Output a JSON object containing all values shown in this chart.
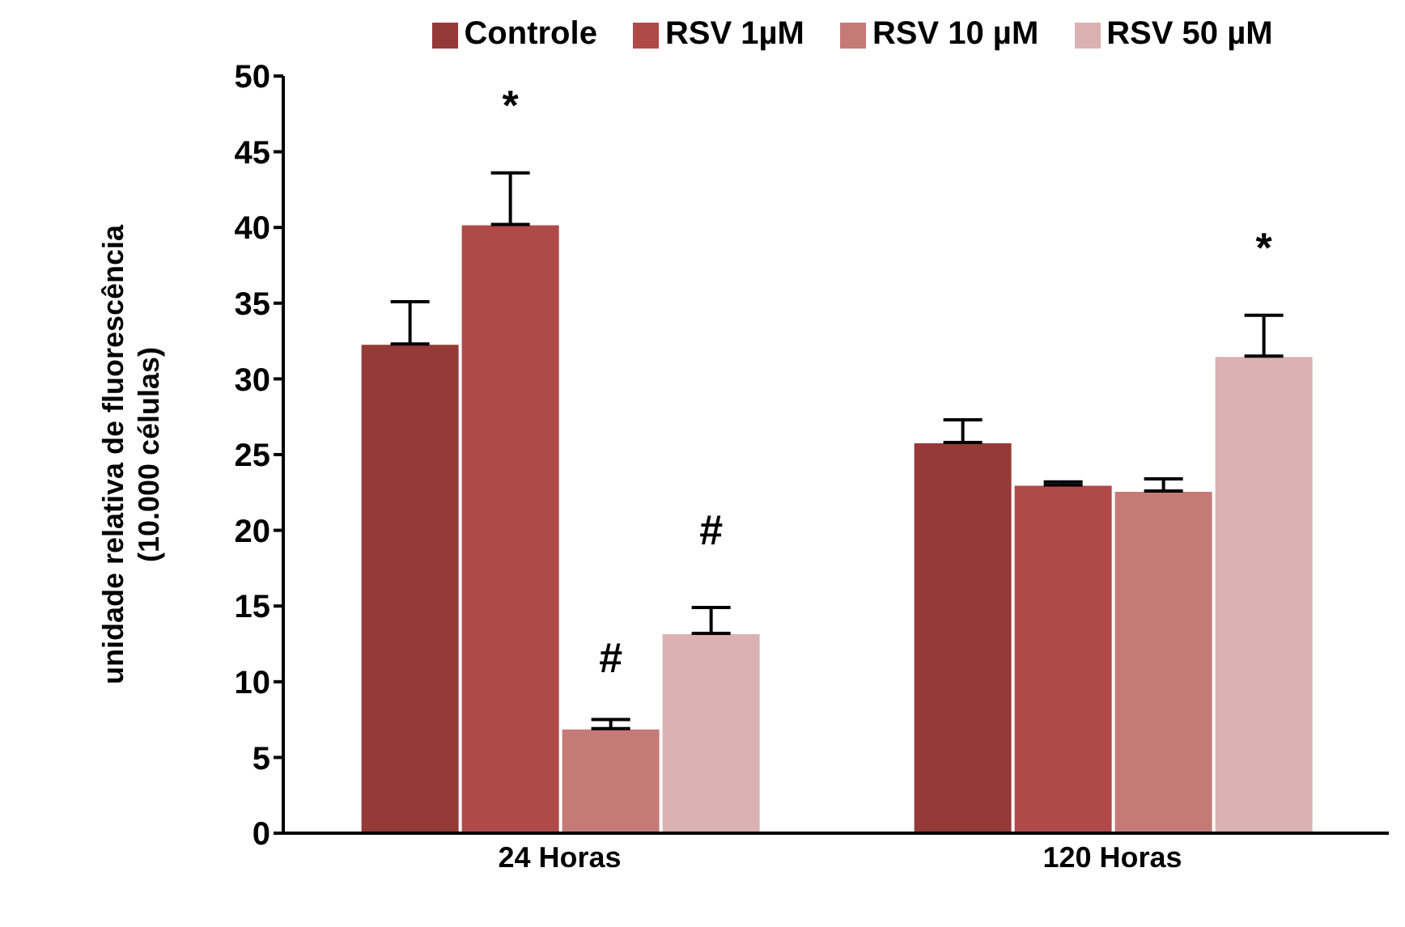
{
  "chart_data": {
    "type": "bar",
    "ylabel": "unidade relativa de fluorescência\n(10.000 células)",
    "categories": [
      "24 Horas",
      "120 Horas"
    ],
    "series": [
      {
        "name": "Controle",
        "color": "#943a37",
        "values": [
          32.3,
          25.8
        ],
        "errors": [
          [
            32.3,
            35.1
          ],
          [
            25.8,
            27.3
          ]
        ]
      },
      {
        "name": "RSV 1µM",
        "color": "#b04a48",
        "values": [
          40.2,
          23.0
        ],
        "errors": [
          [
            40.2,
            43.6
          ],
          [
            23.0,
            23.2
          ]
        ]
      },
      {
        "name": "RSV 10 µM",
        "color": "#c67a78",
        "values": [
          6.9,
          22.6
        ],
        "errors": [
          [
            6.9,
            7.5
          ],
          [
            22.6,
            23.4
          ]
        ]
      },
      {
        "name": "RSV 50 µM",
        "color": "#dbb1b1",
        "values": [
          13.2,
          31.5
        ],
        "errors": [
          [
            13.2,
            14.9
          ],
          [
            31.5,
            34.2
          ]
        ]
      }
    ],
    "ylim": [
      0,
      50
    ],
    "yticks": [
      0,
      5,
      10,
      15,
      20,
      25,
      30,
      35,
      40,
      45,
      50
    ],
    "legend": "top",
    "annotations": [
      "*",
      "#",
      "#",
      "*"
    ]
  }
}
